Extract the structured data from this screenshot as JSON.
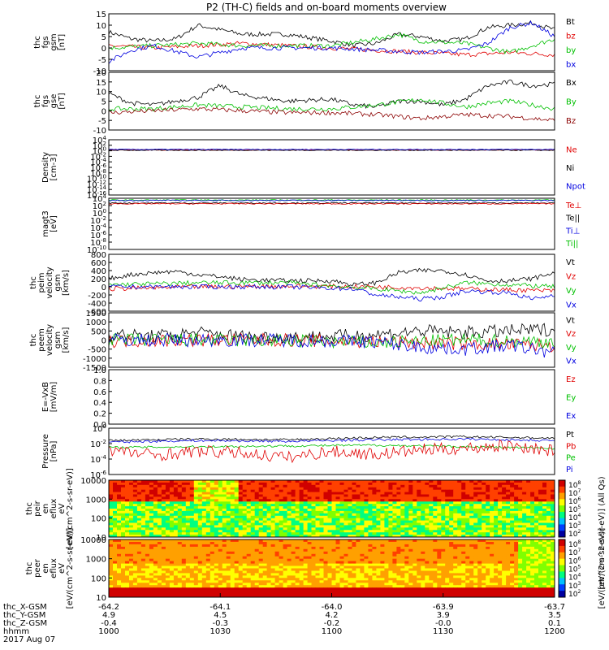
{
  "title": "P2 (TH-C) fields and on-board moments overview",
  "chart_data": [
    {
      "type": "line",
      "panel": "fgs_gsm",
      "ylabel": [
        "thc",
        "fgs",
        "gsm",
        "[nT]"
      ],
      "ylim": [
        -10,
        15
      ],
      "yticks": [
        "15",
        "10",
        "5",
        "0",
        "-5",
        "-10"
      ],
      "legend": [
        {
          "name": "Bt",
          "color": "#000000"
        },
        {
          "name": "bz",
          "color": "#e00000"
        },
        {
          "name": "by",
          "color": "#00c000"
        },
        {
          "name": "bx",
          "color": "#0000e0"
        }
      ],
      "series": [
        {
          "name": "Bt",
          "color": "#000000",
          "x": [
            1000,
            1010,
            1020,
            1030,
            1040,
            1050,
            1060,
            1080,
            1100,
            1110,
            1120,
            1130,
            1140,
            1150,
            1160,
            1170,
            1180,
            1190,
            1200
          ],
          "values": [
            7,
            4,
            3,
            4,
            10,
            8,
            6,
            6,
            3,
            1,
            2,
            6,
            5,
            3,
            4,
            9,
            10,
            11,
            8
          ]
        },
        {
          "name": "bz",
          "color": "#e00000",
          "x": [
            1000,
            1020,
            1040,
            1060,
            1080,
            1100,
            1120,
            1140,
            1160,
            1180,
            1200
          ],
          "values": [
            1,
            0,
            1,
            2,
            1,
            0,
            -1,
            -2,
            -3,
            -2,
            -3
          ]
        },
        {
          "name": "by",
          "color": "#00c000",
          "x": [
            1000,
            1020,
            1040,
            1060,
            1080,
            1100,
            1120,
            1130,
            1140,
            1160,
            1180,
            1200
          ],
          "values": [
            0,
            1,
            2,
            1,
            1,
            1,
            4,
            6,
            3,
            2,
            -2,
            4
          ]
        },
        {
          "name": "bx",
          "color": "#0000e0",
          "x": [
            1000,
            1010,
            1020,
            1040,
            1060,
            1080,
            1100,
            1120,
            1140,
            1160,
            1170,
            1180,
            1190,
            1200
          ],
          "values": [
            -6,
            -1,
            1,
            -4,
            0,
            0,
            0,
            -1,
            -2,
            -1,
            2,
            9,
            11,
            5
          ]
        }
      ]
    },
    {
      "type": "line",
      "panel": "fgs_gse",
      "ylabel": [
        "thc",
        "fgs",
        "gse",
        "[nT]"
      ],
      "ylim": [
        -10,
        20
      ],
      "yticks": [
        "20",
        "15",
        "10",
        "5",
        "0",
        "-5",
        "-10"
      ],
      "legend": [
        {
          "name": "Bx",
          "color": "#000000"
        },
        {
          "name": "By",
          "color": "#00c000"
        },
        {
          "name": "Bz",
          "color": "#8b0000"
        }
      ],
      "series": [
        {
          "name": "Bx",
          "color": "#000000",
          "x": [
            1000,
            1010,
            1020,
            1040,
            1050,
            1060,
            1080,
            1100,
            1110,
            1120,
            1130,
            1140,
            1150,
            1160,
            1170,
            1180,
            1190,
            1200
          ],
          "values": [
            9,
            4,
            3,
            7,
            13,
            8,
            5,
            6,
            3,
            2,
            5,
            5,
            3,
            6,
            13,
            15,
            13,
            14
          ]
        },
        {
          "name": "By",
          "color": "#00c000",
          "x": [
            1000,
            1020,
            1040,
            1060,
            1080,
            1100,
            1120,
            1140,
            1160,
            1170,
            1180,
            1200
          ],
          "values": [
            1,
            1,
            3,
            2,
            1,
            1,
            3,
            6,
            2,
            4,
            5,
            1
          ]
        },
        {
          "name": "Bz",
          "color": "#8b0000",
          "x": [
            1000,
            1020,
            1040,
            1060,
            1080,
            1100,
            1120,
            1140,
            1160,
            1180,
            1200
          ],
          "values": [
            -1,
            0,
            1,
            0,
            -1,
            -1,
            -2,
            -4,
            -2,
            -3,
            -5
          ]
        }
      ]
    },
    {
      "type": "line",
      "panel": "density",
      "ylabel": [
        "Density",
        "[cm-3]"
      ],
      "ylim_log": [
        -16,
        4
      ],
      "yticks": [
        "10^4",
        "10^2",
        "10^0",
        "10^-2",
        "10^-4",
        "10^-6",
        "10^-8",
        "10^-10",
        "10^-12",
        "10^-14",
        "10^-16"
      ],
      "legend": [
        {
          "name": "Ne",
          "color": "#e00000"
        },
        {
          "name": "Ni",
          "color": "#000000"
        },
        {
          "name": "Npot",
          "color": "#0000e0"
        }
      ],
      "series": [
        {
          "name": "Ne",
          "color": "#e00000",
          "log10_values_flat": 0.3
        },
        {
          "name": "Ni",
          "color": "#000000",
          "log10_values_flat": 0.2
        },
        {
          "name": "Npot",
          "color": "#0000e0",
          "log10_values_flat": 0.5
        }
      ]
    },
    {
      "type": "line",
      "panel": "magt3",
      "ylabel": [
        "magt3",
        "[eV]"
      ],
      "ylim_log": [
        -10,
        4
      ],
      "yticks": [
        "10^4",
        "10^2",
        "10^0",
        "10^-2",
        "10^-4",
        "10^-6",
        "10^-8",
        "10^-10"
      ],
      "legend": [
        {
          "name": "Te⊥",
          "color": "#e00000"
        },
        {
          "name": "Te||",
          "color": "#000000"
        },
        {
          "name": "Ti⊥",
          "color": "#0000e0"
        },
        {
          "name": "Ti||",
          "color": "#00c000"
        }
      ],
      "series": [
        {
          "name": "Ti||",
          "color": "#00c000",
          "log10_values_flat": 3.5
        },
        {
          "name": "Ti⊥",
          "color": "#0000e0",
          "log10_values_flat": 3.4
        },
        {
          "name": "Te||",
          "color": "#000000",
          "log10_values_flat": 2.7
        },
        {
          "name": "Te⊥",
          "color": "#e00000",
          "log10_values_flat": 2.5
        }
      ]
    },
    {
      "type": "line",
      "panel": "peim_velocity",
      "ylabel": [
        "thc",
        "peim",
        "velocity",
        "gsm",
        "[km/s]"
      ],
      "ylim": [
        -600,
        800
      ],
      "yticks": [
        "800",
        "600",
        "400",
        "200",
        "0",
        "-200",
        "-400",
        "-600"
      ],
      "legend": [
        {
          "name": "Vt",
          "color": "#000000"
        },
        {
          "name": "Vz",
          "color": "#e00000"
        },
        {
          "name": "Vy",
          "color": "#00c000"
        },
        {
          "name": "Vx",
          "color": "#0000e0"
        }
      ],
      "series": [
        {
          "name": "Vt",
          "color": "#000000",
          "x": [
            1000,
            1010,
            1020,
            1030,
            1040,
            1050,
            1060,
            1080,
            1100,
            1110,
            1120,
            1130,
            1140,
            1150,
            1160,
            1170,
            1180,
            1190,
            1200
          ],
          "values": [
            200,
            300,
            350,
            380,
            300,
            250,
            180,
            150,
            150,
            50,
            100,
            350,
            400,
            400,
            300,
            150,
            150,
            200,
            350
          ]
        },
        {
          "name": "Vz",
          "color": "#e00000",
          "x": [
            1000,
            1040,
            1080,
            1120,
            1160,
            1200
          ],
          "values": [
            -50,
            0,
            20,
            0,
            -50,
            -100
          ]
        },
        {
          "name": "Vy",
          "color": "#00c000",
          "x": [
            1000,
            1040,
            1080,
            1120,
            1140,
            1160,
            1200
          ],
          "values": [
            50,
            100,
            100,
            -50,
            -150,
            100,
            0
          ]
        },
        {
          "name": "Vx",
          "color": "#0000e0",
          "x": [
            1000,
            1040,
            1080,
            1110,
            1120,
            1140,
            1150,
            1160,
            1180,
            1190,
            1200
          ],
          "values": [
            0,
            0,
            0,
            -50,
            -200,
            -300,
            -250,
            -100,
            -150,
            -300,
            -200
          ]
        }
      ]
    },
    {
      "type": "line",
      "panel": "peem_velocity",
      "ylabel": [
        "thc",
        "peem",
        "velocity",
        "gsm",
        "[km/s]"
      ],
      "ylim": [
        -1500,
        1500
      ],
      "yticks": [
        "1500",
        "1000",
        "500",
        "0",
        "-500",
        "-1000",
        "-1500"
      ],
      "legend": [
        {
          "name": "Vt",
          "color": "#000000"
        },
        {
          "name": "Vz",
          "color": "#e00000"
        },
        {
          "name": "Vy",
          "color": "#00c000"
        },
        {
          "name": "Vx",
          "color": "#0000e0"
        }
      ],
      "series": [
        {
          "name": "Vt",
          "color": "#000000",
          "x": [
            1000,
            1020,
            1040,
            1060,
            1080,
            1100,
            1120,
            1140,
            1160,
            1180,
            1200
          ],
          "values": [
            300,
            200,
            400,
            200,
            150,
            200,
            300,
            500,
            400,
            500,
            600
          ]
        },
        {
          "name": "Vz",
          "color": "#e00000",
          "x": [
            1000,
            1040,
            1080,
            1120,
            1160,
            1200
          ],
          "values": [
            -50,
            0,
            0,
            -100,
            -200,
            -300
          ]
        },
        {
          "name": "Vy",
          "color": "#00c000",
          "x": [
            1000,
            1040,
            1080,
            1120,
            1160,
            1200
          ],
          "values": [
            0,
            0,
            -50,
            -150,
            0,
            -100
          ]
        },
        {
          "name": "Vx",
          "color": "#0000e0",
          "x": [
            1000,
            1040,
            1080,
            1120,
            1140,
            1160,
            1180,
            1200
          ],
          "values": [
            0,
            0,
            0,
            -100,
            -400,
            -500,
            -300,
            -700
          ]
        }
      ]
    },
    {
      "type": "line",
      "panel": "efield",
      "ylabel": [
        "E=-VxB",
        "[mV/m]"
      ],
      "ylim": [
        0,
        1
      ],
      "yticks": [
        "1.0",
        "0.8",
        "0.6",
        "0.4",
        "0.2",
        "0.0"
      ],
      "legend": [
        {
          "name": "Ez",
          "color": "#e00000"
        },
        {
          "name": "Ey",
          "color": "#00c000"
        },
        {
          "name": "Ex",
          "color": "#0000e0"
        }
      ],
      "series": []
    },
    {
      "type": "line",
      "panel": "pressure",
      "ylabel": [
        "Pressure",
        "[nPa]"
      ],
      "ylim_log": [
        -6,
        0
      ],
      "yticks": [
        "10^0",
        "10^-2",
        "10^-4",
        "10^-6"
      ],
      "legend": [
        {
          "name": "Pt",
          "color": "#000000"
        },
        {
          "name": "Pb",
          "color": "#e00000"
        },
        {
          "name": "Pe",
          "color": "#00c000"
        },
        {
          "name": "Pi",
          "color": "#0000e0"
        }
      ],
      "series": [
        {
          "name": "Pt",
          "color": "#000000",
          "x": [
            1000,
            1040,
            1080,
            1120,
            1160,
            1200
          ],
          "log10_values": [
            -1.6,
            -1.4,
            -1.5,
            -1.2,
            -1.1,
            -1.3
          ]
        },
        {
          "name": "Pi",
          "color": "#0000e0",
          "x": [
            1000,
            1040,
            1080,
            1120,
            1160,
            1200
          ],
          "log10_values": [
            -1.8,
            -1.6,
            -1.7,
            -1.5,
            -1.4,
            -1.6
          ]
        },
        {
          "name": "Pe",
          "color": "#00c000",
          "x": [
            1000,
            1040,
            1080,
            1120,
            1160,
            1200
          ],
          "log10_values": [
            -2.5,
            -2.4,
            -2.3,
            -2.2,
            -2.4,
            -2.6
          ]
        },
        {
          "name": "Pb",
          "color": "#e00000",
          "x": [
            1000,
            1020,
            1040,
            1060,
            1080,
            1100,
            1120,
            1140,
            1160,
            1180,
            1200
          ],
          "log10_values": [
            -2.8,
            -3.5,
            -3.0,
            -3.2,
            -3.8,
            -3.0,
            -3.4,
            -2.8,
            -2.6,
            -2.2,
            -3.0
          ]
        }
      ]
    },
    {
      "type": "heatmap",
      "panel": "peir_en_eflux",
      "ylabel": [
        "thc",
        "peir",
        "en",
        "eflux",
        "eV",
        "[eV/(cm^2-s-sr-eV)]"
      ],
      "ylim_log": [
        1,
        4.3
      ],
      "yticks": [
        "10000",
        "1000",
        "100",
        "10"
      ],
      "colorbar_label": "[eV/(cm^2-s-sr-eV)] (All Qs)",
      "colorbar_ticks": [
        "10^8",
        "10^7",
        "10^6",
        "10^5",
        "10^4",
        "10^3",
        "10^2"
      ]
    },
    {
      "type": "heatmap",
      "panel": "peer_en_eflux",
      "ylabel": [
        "thc",
        "peer",
        "en",
        "eflux",
        "eV",
        "[eV/(cm^2-s-sr-eV)]"
      ],
      "ylim_log": [
        0.5,
        4.3
      ],
      "yticks": [
        "10000",
        "1000",
        "100",
        "10"
      ],
      "colorbar_label": "[eV/(cm^2-s-sr-eV)]",
      "colorbar_ticks": [
        "10^8",
        "10^7",
        "10^6",
        "10^5",
        "10^4",
        "10^3",
        "10^2"
      ]
    }
  ],
  "x_axis": {
    "rows": [
      {
        "label": "thc_X-GSM",
        "values": [
          "-64.2",
          "-64.1",
          "-64.0",
          "-63.9",
          "-63.7"
        ]
      },
      {
        "label": "thc_Y-GSM",
        "values": [
          "4.9",
          "4.5",
          "4.2",
          "3.9",
          "3.5"
        ]
      },
      {
        "label": "thc_Z-GSM",
        "values": [
          "-0.4",
          "-0.3",
          "-0.2",
          "-0.0",
          "0.1"
        ]
      },
      {
        "label": "hhmm",
        "values": [
          "1000",
          "1030",
          "1100",
          "1130",
          "1200"
        ]
      }
    ],
    "date": "2017 Aug 07",
    "range": [
      1000,
      1200
    ]
  }
}
